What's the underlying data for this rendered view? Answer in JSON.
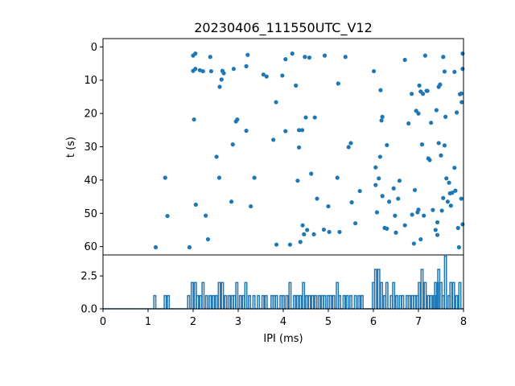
{
  "title": "20230406_111550UTC_V12",
  "chart_data": [
    {
      "type": "scatter",
      "title": "20230406_111550UTC_V12",
      "ylabel": "t (s)",
      "xlim": [
        0,
        8
      ],
      "ylim": [
        62.5,
        -2.5
      ],
      "y_inverted": true,
      "yticks": [
        "0",
        "10",
        "20",
        "30",
        "40",
        "50",
        "60"
      ],
      "ytick_values": [
        0,
        10,
        20,
        30,
        40,
        50,
        60
      ],
      "color": "#1f77b4",
      "points": [
        [
          1.17,
          60.2
        ],
        [
          1.38,
          39.3
        ],
        [
          1.43,
          50.8
        ],
        [
          1.92,
          60.2
        ],
        [
          2.0,
          2.6
        ],
        [
          2.05,
          2.0
        ],
        [
          2.0,
          7.2
        ],
        [
          2.05,
          6.6
        ],
        [
          2.15,
          7.0
        ],
        [
          2.22,
          7.3
        ],
        [
          2.02,
          21.8
        ],
        [
          2.06,
          47.4
        ],
        [
          2.28,
          50.7
        ],
        [
          2.33,
          57.8
        ],
        [
          2.38,
          3.0
        ],
        [
          2.4,
          7.3
        ],
        [
          2.52,
          33.0
        ],
        [
          2.58,
          39.3
        ],
        [
          2.59,
          12.0
        ],
        [
          2.63,
          9.8
        ],
        [
          2.65,
          7.2
        ],
        [
          2.68,
          7.9
        ],
        [
          2.85,
          46.5
        ],
        [
          2.88,
          29.3
        ],
        [
          2.9,
          6.6
        ],
        [
          2.95,
          22.4
        ],
        [
          2.98,
          21.8
        ],
        [
          3.18,
          5.8
        ],
        [
          3.21,
          2.4
        ],
        [
          3.18,
          25.2
        ],
        [
          3.28,
          47.9
        ],
        [
          3.36,
          39.3
        ],
        [
          3.56,
          8.3
        ],
        [
          3.63,
          8.9
        ],
        [
          3.78,
          27.9
        ],
        [
          3.84,
          16.6
        ],
        [
          3.85,
          59.4
        ],
        [
          3.98,
          8.6
        ],
        [
          4.05,
          3.7
        ],
        [
          4.05,
          25.3
        ],
        [
          4.15,
          59.4
        ],
        [
          4.2,
          2.0
        ],
        [
          4.28,
          11.6
        ],
        [
          4.32,
          40.2
        ],
        [
          4.35,
          30.2
        ],
        [
          4.35,
          25.0
        ],
        [
          4.38,
          58.6
        ],
        [
          4.42,
          25.0
        ],
        [
          4.43,
          53.6
        ],
        [
          4.46,
          56.3
        ],
        [
          4.5,
          21.2
        ],
        [
          4.48,
          3.0
        ],
        [
          4.53,
          55.0
        ],
        [
          4.58,
          3.2
        ],
        [
          4.62,
          38.1
        ],
        [
          4.68,
          56.3
        ],
        [
          4.7,
          21.2
        ],
        [
          4.75,
          45.6
        ],
        [
          4.9,
          54.9
        ],
        [
          4.92,
          2.6
        ],
        [
          5.0,
          47.9
        ],
        [
          5.02,
          55.6
        ],
        [
          5.2,
          39.3
        ],
        [
          5.22,
          11.0
        ],
        [
          5.25,
          55.6
        ],
        [
          5.38,
          3.0
        ],
        [
          5.45,
          30.1
        ],
        [
          5.5,
          28.9
        ],
        [
          5.52,
          46.7
        ],
        [
          5.6,
          53.0
        ],
        [
          5.7,
          43.3
        ],
        [
          6.01,
          7.3
        ],
        [
          6.05,
          36.2
        ],
        [
          6.05,
          41.5
        ],
        [
          6.08,
          49.7
        ],
        [
          6.12,
          39.5
        ],
        [
          6.15,
          33.0
        ],
        [
          6.16,
          13.0
        ],
        [
          6.18,
          22.1
        ],
        [
          6.2,
          21.0
        ],
        [
          6.2,
          44.8
        ],
        [
          6.25,
          54.4
        ],
        [
          6.3,
          29.5
        ],
        [
          6.3,
          54.6
        ],
        [
          6.35,
          46.5
        ],
        [
          6.45,
          42.5
        ],
        [
          6.48,
          50.7
        ],
        [
          6.5,
          55.8
        ],
        [
          6.55,
          45.6
        ],
        [
          6.58,
          40.2
        ],
        [
          6.7,
          53.6
        ],
        [
          6.7,
          3.9
        ],
        [
          6.78,
          23.0
        ],
        [
          6.85,
          14.1
        ],
        [
          6.86,
          50.4
        ],
        [
          6.9,
          59.1
        ],
        [
          6.92,
          43.0
        ],
        [
          6.95,
          19.2
        ],
        [
          6.98,
          49.7
        ],
        [
          7.0,
          20.0
        ],
        [
          7.0,
          48.9
        ],
        [
          7.02,
          11.6
        ],
        [
          7.05,
          13.4
        ],
        [
          7.05,
          57.8
        ],
        [
          7.08,
          29.3
        ],
        [
          7.1,
          14.1
        ],
        [
          7.12,
          50.7
        ],
        [
          7.15,
          2.6
        ],
        [
          7.18,
          13.2
        ],
        [
          7.2,
          13.2
        ],
        [
          7.22,
          33.5
        ],
        [
          7.25,
          34.0
        ],
        [
          7.28,
          22.8
        ],
        [
          7.32,
          49.0
        ],
        [
          7.38,
          55.0
        ],
        [
          7.4,
          19.0
        ],
        [
          7.42,
          56.5
        ],
        [
          7.42,
          52.7
        ],
        [
          7.45,
          28.9
        ],
        [
          7.45,
          12.0
        ],
        [
          7.48,
          11.3
        ],
        [
          7.5,
          32.6
        ],
        [
          7.52,
          49.2
        ],
        [
          7.55,
          45.4
        ],
        [
          7.55,
          3.0
        ],
        [
          7.58,
          29.6
        ],
        [
          7.58,
          7.4
        ],
        [
          7.6,
          21.0
        ],
        [
          7.62,
          39.5
        ],
        [
          7.65,
          46.5
        ],
        [
          7.68,
          40.8
        ],
        [
          7.7,
          44.0
        ],
        [
          7.72,
          47.7
        ],
        [
          7.75,
          43.8
        ],
        [
          7.8,
          36.3
        ],
        [
          7.82,
          43.2
        ],
        [
          7.8,
          7.5
        ],
        [
          7.85,
          19.7
        ],
        [
          7.88,
          54.4
        ],
        [
          7.9,
          60.2
        ],
        [
          7.92,
          14.2
        ],
        [
          7.95,
          45.6
        ],
        [
          7.96,
          16.6
        ],
        [
          7.98,
          2.0
        ],
        [
          7.98,
          6.6
        ],
        [
          7.98,
          53.3
        ],
        [
          7.95,
          14.0
        ]
      ]
    },
    {
      "type": "line",
      "xlabel": "IPI (ms)",
      "xlim": [
        0,
        8
      ],
      "ylim": [
        0,
        4.1
      ],
      "xticks": [
        "0",
        "1",
        "2",
        "3",
        "4",
        "5",
        "6",
        "7",
        "8"
      ],
      "xtick_values": [
        0,
        1,
        2,
        3,
        4,
        5,
        6,
        7,
        8
      ],
      "yticks": [
        "0.0",
        "2.5"
      ],
      "ytick_values": [
        0,
        2.5
      ],
      "color": "#1f77b4",
      "spikes": [
        [
          1.15,
          1
        ],
        [
          1.38,
          1
        ],
        [
          1.45,
          1
        ],
        [
          1.9,
          1
        ],
        [
          1.98,
          2
        ],
        [
          2.05,
          2
        ],
        [
          2.1,
          1
        ],
        [
          2.17,
          1
        ],
        [
          2.22,
          2
        ],
        [
          2.3,
          1
        ],
        [
          2.38,
          1
        ],
        [
          2.45,
          1
        ],
        [
          2.52,
          1
        ],
        [
          2.58,
          2
        ],
        [
          2.65,
          2
        ],
        [
          2.72,
          1
        ],
        [
          2.8,
          1
        ],
        [
          2.87,
          1
        ],
        [
          2.92,
          1
        ],
        [
          2.97,
          2
        ],
        [
          3.05,
          1
        ],
        [
          3.12,
          1
        ],
        [
          3.17,
          2
        ],
        [
          3.25,
          1
        ],
        [
          3.35,
          1
        ],
        [
          3.45,
          1
        ],
        [
          3.55,
          1
        ],
        [
          3.62,
          1
        ],
        [
          3.75,
          1
        ],
        [
          3.8,
          1
        ],
        [
          3.85,
          1
        ],
        [
          3.95,
          1
        ],
        [
          4.0,
          1
        ],
        [
          4.08,
          1
        ],
        [
          4.15,
          2
        ],
        [
          4.25,
          1
        ],
        [
          4.32,
          1
        ],
        [
          4.38,
          1
        ],
        [
          4.45,
          2
        ],
        [
          4.52,
          1
        ],
        [
          4.58,
          1
        ],
        [
          4.65,
          1
        ],
        [
          4.72,
          1
        ],
        [
          4.8,
          1
        ],
        [
          4.87,
          1
        ],
        [
          4.92,
          1
        ],
        [
          5.0,
          1
        ],
        [
          5.05,
          1
        ],
        [
          5.12,
          1
        ],
        [
          5.2,
          2
        ],
        [
          5.25,
          1
        ],
        [
          5.35,
          1
        ],
        [
          5.42,
          1
        ],
        [
          5.5,
          1
        ],
        [
          5.6,
          1
        ],
        [
          5.68,
          1
        ],
        [
          5.75,
          1
        ],
        [
          6.0,
          2
        ],
        [
          6.05,
          3
        ],
        [
          6.12,
          3
        ],
        [
          6.18,
          2
        ],
        [
          6.25,
          1
        ],
        [
          6.3,
          2
        ],
        [
          6.4,
          1
        ],
        [
          6.45,
          2
        ],
        [
          6.52,
          1
        ],
        [
          6.6,
          1
        ],
        [
          6.65,
          1
        ],
        [
          6.75,
          1
        ],
        [
          6.8,
          1
        ],
        [
          6.87,
          1
        ],
        [
          6.92,
          1
        ],
        [
          6.98,
          1
        ],
        [
          7.02,
          2
        ],
        [
          7.08,
          3
        ],
        [
          7.15,
          2
        ],
        [
          7.22,
          1
        ],
        [
          7.28,
          1
        ],
        [
          7.35,
          1
        ],
        [
          7.38,
          2
        ],
        [
          7.42,
          2
        ],
        [
          7.45,
          3
        ],
        [
          7.5,
          2
        ],
        [
          7.55,
          1
        ],
        [
          7.6,
          4
        ],
        [
          7.68,
          1
        ],
        [
          7.72,
          2
        ],
        [
          7.78,
          2
        ],
        [
          7.85,
          1
        ],
        [
          7.92,
          2
        ]
      ]
    }
  ]
}
